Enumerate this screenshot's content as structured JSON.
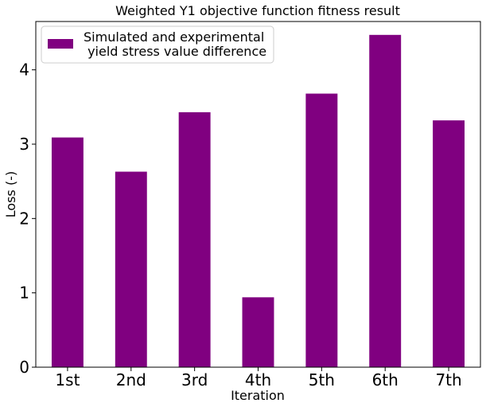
{
  "chart_data": {
    "type": "bar",
    "title": "Weighted Y1 objective function fitness result",
    "xlabel": "Iteration",
    "ylabel": "Loss (-)",
    "categories": [
      "1st",
      "2nd",
      "3rd",
      "4th",
      "5th",
      "6th",
      "7th"
    ],
    "series": [
      {
        "name": "Simulated and experimental\n yield stress value difference",
        "values": [
          3.09,
          2.63,
          3.43,
          0.94,
          3.68,
          4.47,
          3.32
        ],
        "color": "#800080"
      }
    ],
    "ylim": [
      0,
      4.65
    ],
    "yticks": [
      0,
      1,
      2,
      3,
      4
    ],
    "grid": false,
    "legend_position": "top-left"
  }
}
